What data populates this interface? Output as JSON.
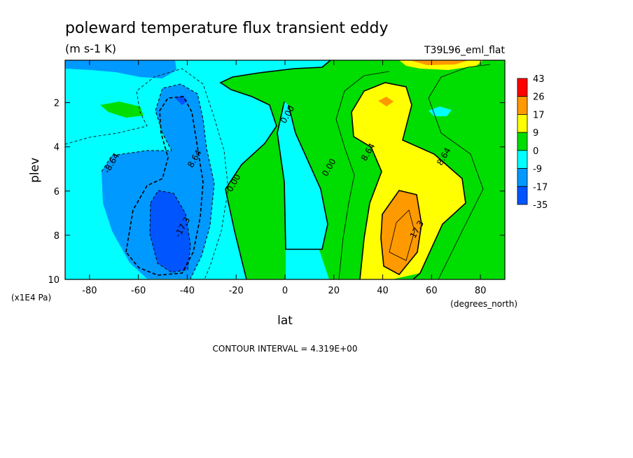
{
  "chart_data": {
    "type": "contour",
    "title": "poleward temperature flux transient eddy",
    "units": "(m s-1 K)",
    "run_label": "T39L96_eml_flat",
    "xlabel": "lat",
    "xunits": "(degrees_north)",
    "ylabel": "plev",
    "yunits": "(x1E4 Pa)",
    "xlim": [
      -90,
      90
    ],
    "ylim": [
      10,
      0.08
    ],
    "x_ticks": [
      -80,
      -60,
      -40,
      -20,
      0,
      20,
      40,
      60,
      80
    ],
    "x_tick_labels": [
      "-80",
      "-60",
      "-40",
      "-20",
      "0",
      "20",
      "40",
      "60",
      "80"
    ],
    "y_ticks": [
      2,
      4,
      6,
      8,
      10
    ],
    "y_tick_labels": [
      "2",
      "4",
      "6",
      "8",
      "10"
    ],
    "footer": "CONTOUR INTERVAL = 4.319E+00",
    "contour_labels": [
      {
        "text": "-8.64",
        "lat": -70,
        "plev": 4.8
      },
      {
        "text": "8.64",
        "lat": -36,
        "plev": 4.6
      },
      {
        "text": "-17.3",
        "lat": -41,
        "plev": 7.7
      },
      {
        "text": "0.00",
        "lat": -20,
        "plev": 5.7
      },
      {
        "text": "0.00",
        "lat": 2,
        "plev": 2.6
      },
      {
        "text": "0.00",
        "lat": 19,
        "plev": 5.0
      },
      {
        "text": "8.64",
        "lat": 35,
        "plev": 4.3
      },
      {
        "text": "8.64",
        "lat": 66,
        "plev": 4.5
      },
      {
        "text": "17.3",
        "lat": 55,
        "plev": 7.8
      }
    ],
    "colorbar": {
      "labels": [
        "43",
        "26",
        "17",
        "9",
        "0",
        "-9",
        "-17",
        "-35"
      ],
      "colors": [
        "#ff0000",
        "#ff9900",
        "#ffff00",
        "#00dd00",
        "#00ffff",
        "#0099ff",
        "#0055ff"
      ]
    }
  }
}
